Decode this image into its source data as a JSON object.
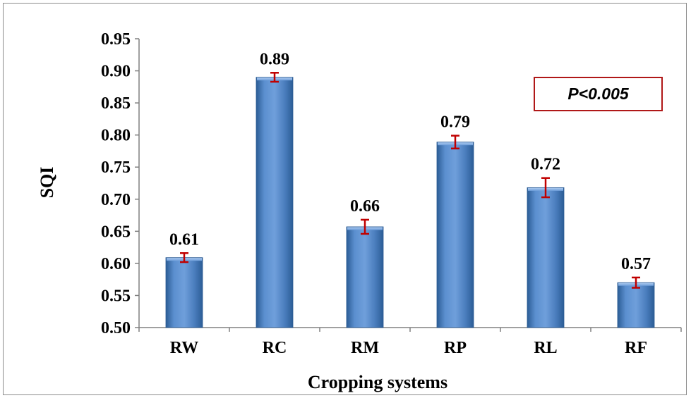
{
  "chart_data": {
    "type": "bar",
    "categories": [
      "RW",
      "RC",
      "RM",
      "RP",
      "RL",
      "RF"
    ],
    "values": [
      0.61,
      0.89,
      0.66,
      0.79,
      0.72,
      0.57
    ],
    "bar_tops": [
      0.609,
      0.89,
      0.657,
      0.789,
      0.718,
      0.57
    ],
    "error": [
      0.007,
      0.007,
      0.011,
      0.01,
      0.015,
      0.008
    ],
    "data_labels": [
      "0.61",
      "0.89",
      "0.66",
      "0.79",
      "0.72",
      "0.57"
    ],
    "xlabel": "Cropping systems",
    "ylabel": "SQI",
    "ylim": [
      0.5,
      0.95
    ],
    "yticks": [
      0.5,
      0.55,
      0.6,
      0.65,
      0.7,
      0.75,
      0.8,
      0.85,
      0.9,
      0.95
    ],
    "ytick_labels": [
      "0.50",
      "0.55",
      "0.60",
      "0.65",
      "0.70",
      "0.75",
      "0.80",
      "0.85",
      "0.90",
      "0.95"
    ],
    "grid": false,
    "legend": "none",
    "annotation": "P<0.005",
    "colors": {
      "bar": "#4f81bd",
      "bar_dark": "#2c5d96",
      "bar_light": "#8db3e2",
      "error_bar": "#c00000",
      "annotation_border": "#b01818",
      "axis": "#808080"
    }
  }
}
